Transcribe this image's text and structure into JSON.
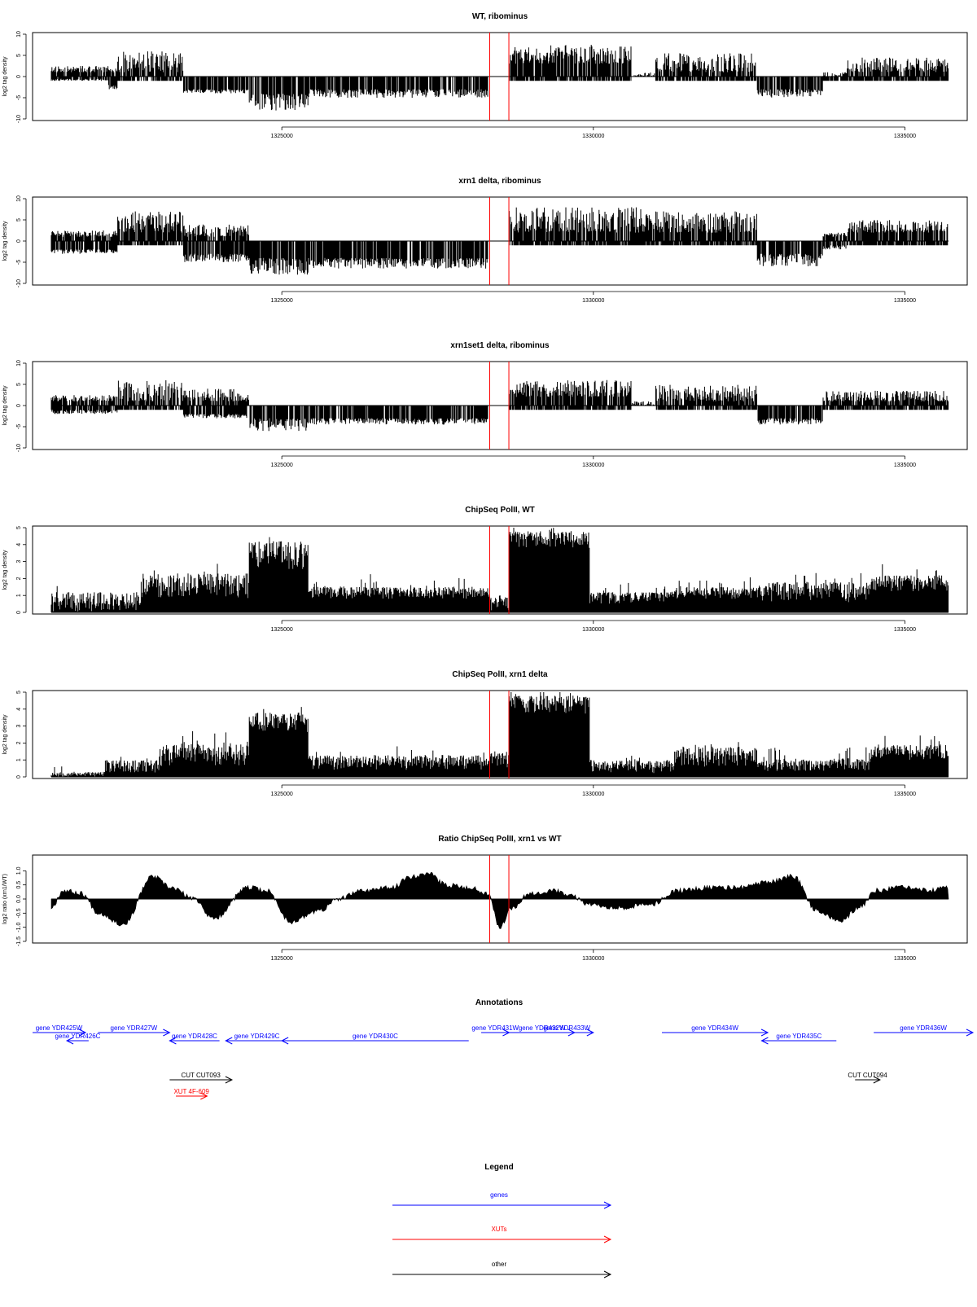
{
  "colors": {
    "gene": "#0000ff",
    "xut": "#ff0000",
    "other": "#000000",
    "marker": "#ff0000",
    "bar": "#000000"
  },
  "chart_data": [
    {
      "type": "bar",
      "title": "WT, ribominus",
      "ylabel": "log2 tag density",
      "ylim": [
        -10,
        10
      ],
      "yticks": [
        "-10",
        "-5",
        "0",
        "5",
        "10"
      ],
      "xlim": [
        1321000,
        1336000
      ],
      "xticks": [
        1325000,
        1330000,
        1335000
      ],
      "xtick_labels": [
        "1325000",
        "1330000",
        "1335000"
      ],
      "markers": [
        1328330,
        1328650
      ],
      "seed": 11,
      "profile": [
        [
          1321000,
          1321950,
          1,
          2.5,
          1,
          -0.5
        ],
        [
          1321950,
          1322100,
          1,
          2,
          2,
          -3
        ],
        [
          1322100,
          1323200,
          1,
          6,
          1,
          -1
        ],
        [
          1323200,
          1324300,
          1,
          0,
          3,
          -4
        ],
        [
          1324300,
          1325300,
          0,
          0,
          4,
          -8
        ],
        [
          1325300,
          1328300,
          0,
          0,
          3,
          -5
        ],
        [
          1328300,
          1328650,
          0,
          0,
          0,
          0
        ],
        [
          1328650,
          1330700,
          3,
          7.5,
          1,
          -1
        ],
        [
          1330700,
          1331100,
          0,
          1,
          1,
          0
        ],
        [
          1331100,
          1332800,
          1,
          5.5,
          1,
          -1
        ],
        [
          1332800,
          1333900,
          0,
          0,
          3,
          -5
        ],
        [
          1333900,
          1334300,
          0,
          1,
          1,
          -1
        ],
        [
          1334300,
          1336000,
          1,
          4.5,
          1,
          -1
        ]
      ]
    },
    {
      "type": "bar",
      "title": "xrn1 delta, ribominus",
      "ylabel": "log2 tag density",
      "ylim": [
        -10,
        10
      ],
      "yticks": [
        "-10",
        "-5",
        "0",
        "5",
        "10"
      ],
      "xlim": [
        1321000,
        1336000
      ],
      "xticks": [
        1325000,
        1330000,
        1335000
      ],
      "xtick_labels": [
        "1325000",
        "1330000",
        "1335000"
      ],
      "markers": [
        1328330,
        1328650
      ],
      "seed": 23,
      "profile": [
        [
          1321000,
          1322100,
          1,
          2.5,
          2,
          -3
        ],
        [
          1322100,
          1323200,
          2,
          7,
          1,
          -1
        ],
        [
          1323200,
          1324300,
          1,
          4,
          3,
          -5
        ],
        [
          1324300,
          1325300,
          0,
          0,
          4,
          -8
        ],
        [
          1325300,
          1328300,
          0,
          0,
          4,
          -6.5
        ],
        [
          1328300,
          1328650,
          0,
          0,
          0,
          0
        ],
        [
          1328650,
          1331100,
          2,
          8,
          1,
          -1
        ],
        [
          1331100,
          1332800,
          2,
          7,
          1,
          -1
        ],
        [
          1332800,
          1333900,
          0,
          0,
          3,
          -6
        ],
        [
          1333900,
          1334300,
          1,
          2,
          1,
          -2
        ],
        [
          1334300,
          1336000,
          2,
          5,
          1,
          -1
        ]
      ]
    },
    {
      "type": "bar",
      "title": "xrn1set1 delta, ribominus",
      "ylabel": "log2 tag density",
      "ylim": [
        -10,
        10
      ],
      "yticks": [
        "-10",
        "-5",
        "0",
        "5",
        "10"
      ],
      "xlim": [
        1321000,
        1336000
      ],
      "xticks": [
        1325000,
        1330000,
        1335000
      ],
      "xtick_labels": [
        "1325000",
        "1330000",
        "1335000"
      ],
      "markers": [
        1328330,
        1328650
      ],
      "seed": 37,
      "profile": [
        [
          1321000,
          1322100,
          1,
          2.5,
          1,
          -2
        ],
        [
          1322100,
          1323200,
          1,
          6,
          1,
          -1
        ],
        [
          1323200,
          1324300,
          1,
          4,
          2,
          -3
        ],
        [
          1324300,
          1325300,
          0,
          0,
          3,
          -6
        ],
        [
          1325300,
          1328300,
          0,
          0,
          3,
          -4.5
        ],
        [
          1328300,
          1328650,
          0,
          0,
          0,
          0
        ],
        [
          1328650,
          1330700,
          2,
          6,
          1,
          -1
        ],
        [
          1330700,
          1331100,
          0,
          1,
          0,
          0
        ],
        [
          1331100,
          1332800,
          1,
          5,
          1,
          -1
        ],
        [
          1332800,
          1333900,
          0,
          0,
          3,
          -4.5
        ],
        [
          1333900,
          1336000,
          1,
          3.5,
          1,
          -1
        ]
      ]
    },
    {
      "type": "bar",
      "title": "ChipSeq PolII, WT",
      "ylabel": "log2 tag density",
      "ylim": [
        0,
        5
      ],
      "yticks": [
        "0",
        "1",
        "2",
        "3",
        "4",
        "5"
      ],
      "xlim": [
        1321000,
        1336000
      ],
      "xticks": [
        1325000,
        1330000,
        1335000
      ],
      "xtick_labels": [
        "1325000",
        "1330000",
        "1335000"
      ],
      "markers": [
        1328330,
        1328650
      ],
      "seed": 41,
      "profile": [
        [
          1321000,
          1322500,
          0,
          1.2,
          0,
          0
        ],
        [
          1322500,
          1324300,
          0.8,
          2.3,
          0,
          0
        ],
        [
          1324300,
          1325300,
          2.5,
          4.2,
          0,
          0
        ],
        [
          1325300,
          1328300,
          0.8,
          1.5,
          0,
          0
        ],
        [
          1328300,
          1328650,
          0,
          1,
          0,
          0
        ],
        [
          1328650,
          1330000,
          3.8,
          4.8,
          0,
          0
        ],
        [
          1330000,
          1331400,
          0.5,
          1.2,
          0,
          0
        ],
        [
          1331400,
          1332800,
          0.8,
          1.5,
          0,
          0
        ],
        [
          1332800,
          1334700,
          0.6,
          1.8,
          0,
          0
        ],
        [
          1334700,
          1336000,
          1.2,
          2.2,
          0,
          0
        ]
      ]
    },
    {
      "type": "bar",
      "title": "ChipSeq PolII, xrn1 delta",
      "ylabel": "log2 tag density",
      "ylim": [
        0,
        5
      ],
      "yticks": [
        "0",
        "1",
        "2",
        "3",
        "4",
        "5"
      ],
      "xlim": [
        1321000,
        1336000
      ],
      "xticks": [
        1325000,
        1330000,
        1335000
      ],
      "xtick_labels": [
        "1325000",
        "1330000",
        "1335000"
      ],
      "markers": [
        1328330,
        1328650
      ],
      "seed": 53,
      "profile": [
        [
          1321000,
          1321900,
          0,
          0.3,
          0,
          0
        ],
        [
          1321900,
          1322800,
          0.2,
          1,
          0,
          0
        ],
        [
          1322800,
          1324300,
          0.6,
          2,
          0,
          0
        ],
        [
          1324300,
          1325300,
          2.6,
          3.8,
          0,
          0
        ],
        [
          1325300,
          1328300,
          0.4,
          1.3,
          0,
          0
        ],
        [
          1328300,
          1328650,
          0.5,
          1.5,
          0,
          0
        ],
        [
          1328650,
          1330000,
          3.7,
          4.8,
          0,
          0
        ],
        [
          1330000,
          1331400,
          0.2,
          1,
          0,
          0
        ],
        [
          1331400,
          1332800,
          0.6,
          1.8,
          0,
          0
        ],
        [
          1332800,
          1334700,
          0.3,
          1.1,
          0,
          0
        ],
        [
          1334700,
          1336000,
          1,
          1.9,
          0,
          0
        ]
      ]
    },
    {
      "type": "area",
      "title": "Ratio ChipSeq PolII, xrn1 vs WT",
      "ylabel": "log2 ratio (xrn1/WT)",
      "ylim": [
        -1.5,
        1.5
      ],
      "yticks": [
        "-1.5",
        "-1.0",
        "-0.5",
        "0.0",
        "0.5",
        "1.0"
      ],
      "xlim": [
        1321000,
        1336000
      ],
      "xticks": [
        1325000,
        1330000,
        1335000
      ],
      "xtick_labels": [
        "1325000",
        "1330000",
        "1335000"
      ],
      "markers": [
        1328330,
        1328650
      ],
      "seed": 67,
      "x": [
        1321000,
        1321200,
        1321500,
        1321800,
        1322200,
        1322700,
        1323000,
        1323400,
        1323700,
        1324300,
        1324600,
        1325000,
        1325500,
        1325800,
        1326200,
        1326700,
        1327000,
        1327300,
        1327600,
        1328000,
        1328300,
        1328500,
        1328700,
        1329000,
        1329400,
        1329700,
        1330000,
        1330500,
        1331000,
        1331500,
        1332000,
        1332500,
        1333000,
        1333400,
        1333800,
        1334200,
        1334500,
        1334800,
        1335200,
        1335700,
        1336000
      ],
      "values": [
        -0.3,
        0.3,
        0.2,
        -0.5,
        -0.9,
        0.8,
        0.4,
        0,
        -0.7,
        0.4,
        0.3,
        -0.8,
        -0.4,
        0,
        0.3,
        0.4,
        0.8,
        0.9,
        0.5,
        0.4,
        0.2,
        -1,
        -0.3,
        0.2,
        0.3,
        0.1,
        -0.2,
        -0.3,
        -0.2,
        0.3,
        0.4,
        0.4,
        0.6,
        0.8,
        -0.4,
        -0.8,
        -0.3,
        0.3,
        0.4,
        0.3,
        0.4
      ]
    }
  ],
  "annotations": {
    "title": "Annotations",
    "items": [
      {
        "name": "gene YDR425W",
        "kind": "gene",
        "start": 1321000,
        "end": 1321850,
        "strand": "+",
        "row": 0
      },
      {
        "name": "gene YDR426C",
        "kind": "gene",
        "start": 1321550,
        "end": 1321900,
        "strand": "-",
        "row": 1
      },
      {
        "name": "gene YDR427W",
        "kind": "gene",
        "start": 1322050,
        "end": 1323200,
        "strand": "+",
        "row": 0
      },
      {
        "name": "gene YDR428C",
        "kind": "gene",
        "start": 1323200,
        "end": 1324000,
        "strand": "-",
        "row": 1
      },
      {
        "name": "gene YDR429C",
        "kind": "gene",
        "start": 1324100,
        "end": 1325100,
        "strand": "-",
        "row": 1
      },
      {
        "name": "gene YDR430C",
        "kind": "gene",
        "start": 1325000,
        "end": 1328000,
        "strand": "-",
        "row": 1
      },
      {
        "name": "gene YDR431W",
        "kind": "gene",
        "start": 1328200,
        "end": 1328650,
        "strand": "+",
        "row": 0
      },
      {
        "name": "gene YDR432W",
        "kind": "gene",
        "start": 1328650,
        "end": 1329700,
        "strand": "+",
        "row": 0
      },
      {
        "name": "gene YDR433W",
        "kind": "gene",
        "start": 1329150,
        "end": 1330000,
        "strand": "+",
        "row": 0
      },
      {
        "name": "gene YDR434W",
        "kind": "gene",
        "start": 1331100,
        "end": 1332800,
        "strand": "+",
        "row": 0
      },
      {
        "name": "gene YDR435C",
        "kind": "gene",
        "start": 1332700,
        "end": 1333900,
        "strand": "-",
        "row": 1
      },
      {
        "name": "gene YDR436W",
        "kind": "gene",
        "start": 1334500,
        "end": 1336600,
        "strand": "+",
        "row": 0
      },
      {
        "name": "CUT CUT093",
        "kind": "other",
        "start": 1323200,
        "end": 1324200,
        "strand": "+",
        "row": 2
      },
      {
        "name": "CUT CUT094",
        "kind": "other",
        "start": 1334200,
        "end": 1334600,
        "strand": "+",
        "row": 2
      },
      {
        "name": "XUT 4F-609",
        "kind": "xut",
        "start": 1323300,
        "end": 1323800,
        "strand": "+",
        "row": 3
      }
    ]
  },
  "legend": {
    "title": "Legend",
    "items": [
      {
        "label": "genes",
        "kind": "gene"
      },
      {
        "label": "XUTs",
        "kind": "xut"
      },
      {
        "label": "other",
        "kind": "other"
      }
    ]
  }
}
